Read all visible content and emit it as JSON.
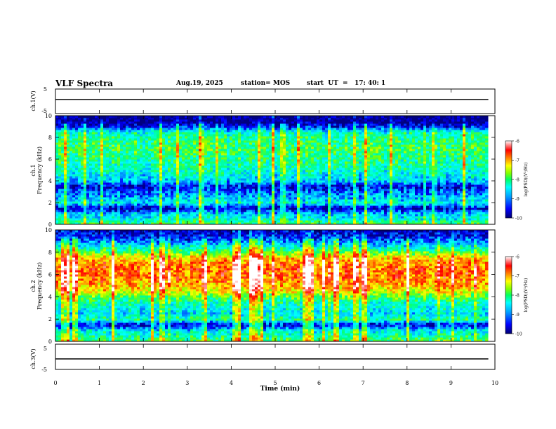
{
  "header": {
    "title": "VLF Spectra",
    "date": "Aug.19, 2025",
    "station": "station= MOS",
    "start": "start  UT  =   17: 40: 1"
  },
  "colors": {
    "colormap": [
      "#000080",
      "#0000ff",
      "#00a0ff",
      "#00ffff",
      "#00ff80",
      "#80ff00",
      "#ffff00",
      "#ff8000",
      "#ff0000",
      "#ffffff"
    ],
    "background": "#000040",
    "trace": "#000000"
  },
  "chart_data": [
    {
      "type": "line",
      "panel": "ch1-waveform",
      "ylabel": "ch.1(V)",
      "ylim": [
        -5,
        5
      ],
      "yticks": [
        "5",
        "-5"
      ],
      "xlim": [
        0,
        10
      ],
      "series": [
        {
          "values": [
            0,
            0,
            0,
            0,
            0,
            0,
            0,
            0,
            0,
            0
          ]
        }
      ]
    },
    {
      "type": "heatmap",
      "panel": "ch1-spectrogram",
      "ylabel_top": "ch.1",
      "ylabel": "Frequency (kHz)",
      "ylim": [
        0,
        10
      ],
      "yticks": [
        "0",
        "2",
        "4",
        "6",
        "8",
        "10"
      ],
      "xlim": [
        0,
        10
      ],
      "data_end_min": 9.85,
      "colorbar": {
        "label": "log(PSD)(V²/Hz)",
        "ticks": [
          "-6",
          "-7",
          "-8",
          "-9",
          "-10"
        ],
        "range": [
          -10,
          -6
        ]
      },
      "profile_khz": [
        0,
        0.5,
        1,
        1.5,
        2,
        2.5,
        3,
        3.5,
        4,
        4.5,
        5,
        5.5,
        6,
        6.5,
        7,
        7.5,
        8,
        8.5,
        9,
        9.5,
        10
      ],
      "profile_log_psd": [
        -8.0,
        -8.6,
        -8.9,
        -9.8,
        -8.6,
        -9.0,
        -9.3,
        -9.7,
        -8.9,
        -8.7,
        -8.5,
        -8.4,
        -8.3,
        -8.2,
        -8.1,
        -8.2,
        -8.3,
        -8.5,
        -9.6,
        -10.0,
        -10.0
      ]
    },
    {
      "type": "heatmap",
      "panel": "ch2-spectrogram",
      "ylabel_top": "ch.2",
      "ylabel": "Frequency (kHz)",
      "ylim": [
        0,
        10
      ],
      "yticks": [
        "0",
        "2",
        "4",
        "6",
        "8",
        "10"
      ],
      "xlim": [
        0,
        10
      ],
      "data_end_min": 9.85,
      "colorbar": {
        "label": "log(PSD)(V²/Hz)",
        "ticks": [
          "-6",
          "-7",
          "-8",
          "-9",
          "-10"
        ],
        "range": [
          -10,
          -6
        ]
      },
      "profile_khz": [
        0,
        0.5,
        1,
        1.5,
        2,
        2.5,
        3,
        3.5,
        4,
        4.5,
        5,
        5.5,
        6,
        6.5,
        7,
        7.5,
        8,
        8.5,
        9,
        9.5,
        10
      ],
      "profile_log_psd": [
        -8.0,
        -8.4,
        -8.7,
        -9.7,
        -8.3,
        -8.8,
        -8.6,
        -8.4,
        -8.0,
        -7.4,
        -7.1,
        -6.9,
        -6.8,
        -6.8,
        -6.9,
        -7.2,
        -7.9,
        -8.6,
        -9.2,
        -9.6,
        -9.8
      ]
    },
    {
      "type": "line",
      "panel": "ch3-waveform",
      "ylabel": "ch.3(V)",
      "ylim": [
        -5,
        5
      ],
      "yticks": [
        "5",
        "-5"
      ],
      "xlim": [
        0,
        10
      ],
      "xlabel": "Time (min)",
      "xticks": [
        "0",
        "1",
        "2",
        "3",
        "4",
        "5",
        "6",
        "7",
        "8",
        "9",
        "10"
      ],
      "series": [
        {
          "values": [
            0,
            0,
            0,
            0,
            0,
            0,
            0,
            0,
            0,
            0
          ]
        }
      ]
    }
  ]
}
